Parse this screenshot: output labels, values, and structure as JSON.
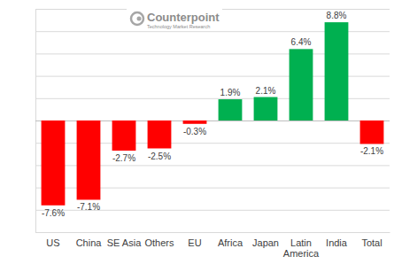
{
  "chart_data": {
    "type": "bar",
    "annotations": [
      "Counterpoint",
      "Technology Market Research"
    ],
    "categories": [
      "US",
      "China",
      "SE Asia",
      "Others",
      "EU",
      "Africa",
      "Japan",
      "Latin America",
      "India",
      "Total"
    ],
    "values": [
      -7.6,
      -7.1,
      -2.7,
      -2.5,
      -0.3,
      1.9,
      2.1,
      6.4,
      8.8,
      -2.1
    ],
    "value_labels": [
      "-7.6%",
      "-7.1%",
      "-2.7%",
      "-2.5%",
      "-0.3%",
      "1.9%",
      "2.1%",
      "6.4%",
      "8.8%",
      "-2.1%"
    ],
    "colors": [
      "#ff0000",
      "#ff0000",
      "#ff0000",
      "#ff0000",
      "#ff0000",
      "#00b050",
      "#00b050",
      "#00b050",
      "#00b050",
      "#ff0000"
    ],
    "ylim": [
      -10,
      10
    ],
    "yticks": [
      -10,
      -8,
      -6,
      -4,
      -2,
      0,
      2,
      4,
      6,
      8,
      10
    ],
    "grid": true,
    "data_labels": true,
    "tick_labels": "x"
  }
}
